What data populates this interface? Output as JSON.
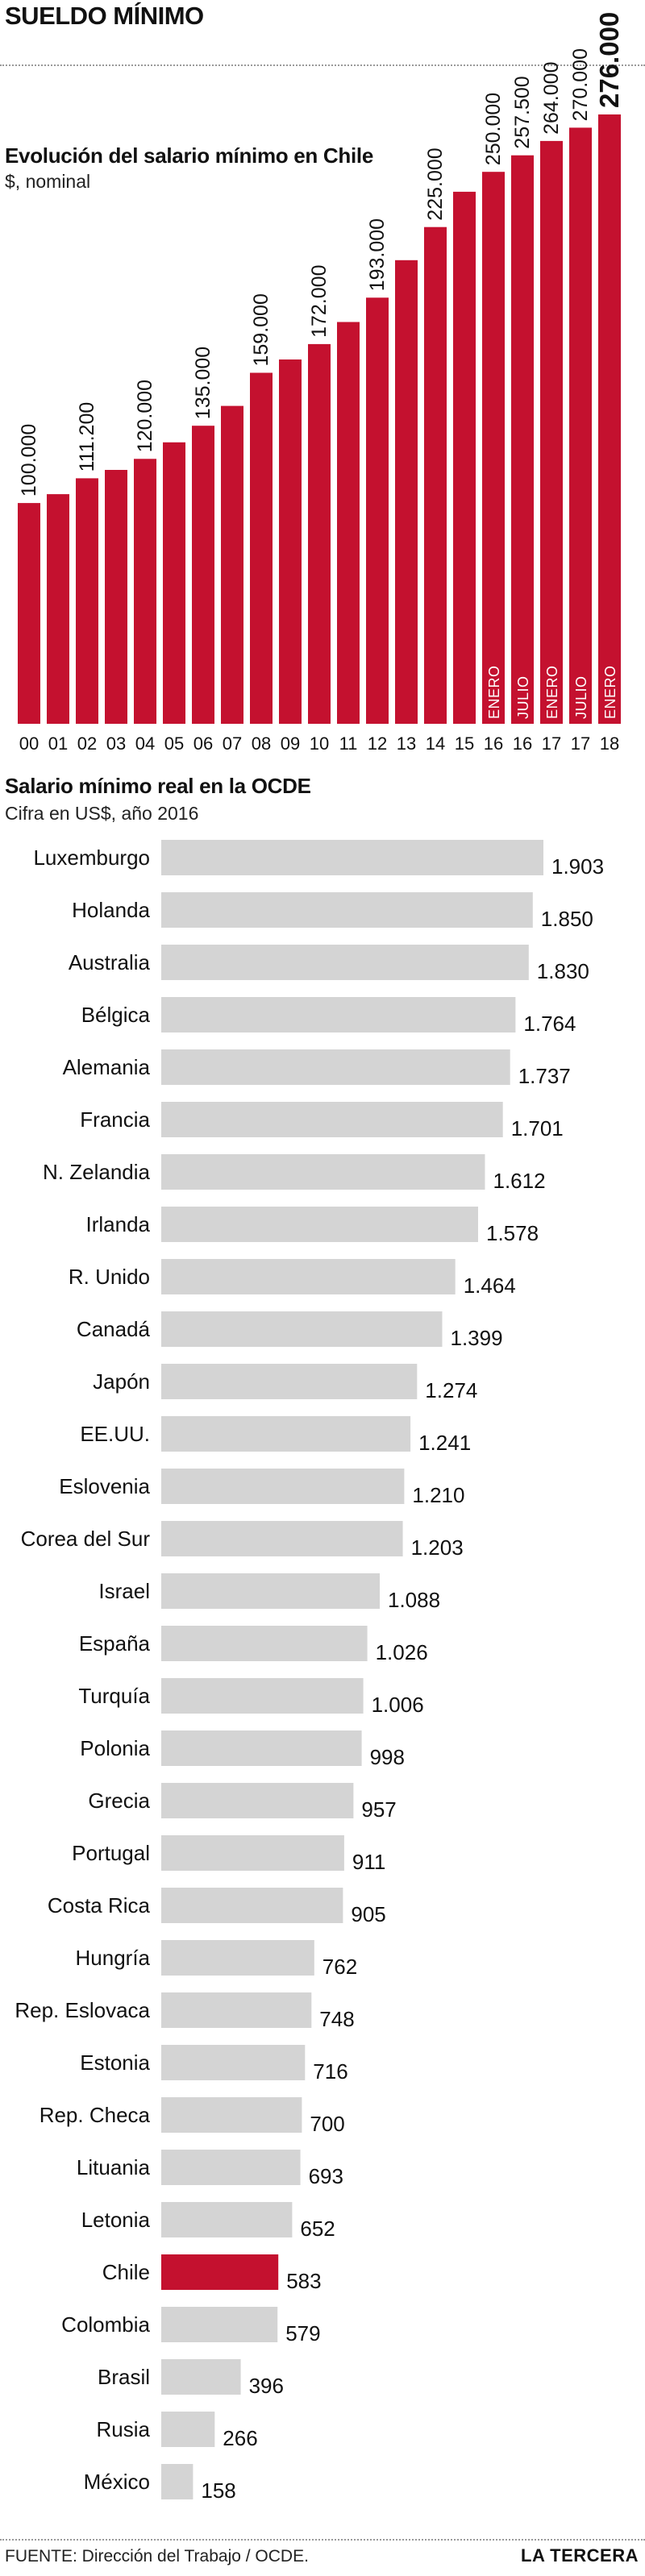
{
  "header": {
    "title": "SUELDO MÍNIMO"
  },
  "footer": {
    "source": "FUENTE: Dirección del Trabajo / OCDE.",
    "brand": "LA TERCERA"
  },
  "colors": {
    "chile_red": "#c4112f",
    "gray_bar": "#d4d4d4",
    "text": "#111111"
  },
  "chart_data": [
    {
      "type": "bar",
      "title": "Evolución del salario mínimo en Chile",
      "subtitle": "$, nominal",
      "categories": [
        "00",
        "01",
        "02",
        "03",
        "04",
        "05",
        "06",
        "07",
        "08",
        "09",
        "10",
        "11",
        "12",
        "13",
        "14",
        "15",
        "16",
        "16",
        "17",
        "17",
        "18"
      ],
      "month_labels": [
        "",
        "",
        "",
        "",
        "",
        "",
        "",
        "",
        "",
        "",
        "",
        "",
        "",
        "",
        "",
        "",
        "ENERO",
        "JULIO",
        "ENERO",
        "JULIO",
        "ENERO"
      ],
      "values": [
        100000,
        104000,
        111200,
        115000,
        120000,
        127500,
        135000,
        144000,
        159000,
        165000,
        172000,
        182000,
        193000,
        210000,
        225000,
        241000,
        250000,
        257500,
        264000,
        270000,
        276000
      ],
      "labels": [
        "100.000",
        "",
        "111.200",
        "",
        "120.000",
        "",
        "135.000",
        "",
        "159.000",
        "",
        "172.000",
        "",
        "193.000",
        "",
        "225.000",
        "",
        "250.000",
        "257.500",
        "264.000",
        "270.000",
        "276.000"
      ],
      "ylim": [
        0,
        276000
      ],
      "bar_color": "#c4112f"
    },
    {
      "type": "bar",
      "orientation": "horizontal",
      "title": "Salario mínimo real en la OCDE",
      "subtitle": "Cifra en US$, año 2016",
      "categories": [
        "Luxemburgo",
        "Holanda",
        "Australia",
        "Bélgica",
        "Alemania",
        "Francia",
        "N. Zelandia",
        "Irlanda",
        "R. Unido",
        "Canadá",
        "Japón",
        "EE.UU.",
        "Eslovenia",
        "Corea del Sur",
        "Israel",
        "España",
        "Turquía",
        "Polonia",
        "Grecia",
        "Portugal",
        "Costa Rica",
        "Hungría",
        "Rep. Eslovaca",
        "Estonia",
        "Rep. Checa",
        "Lituania",
        "Letonia",
        "Chile",
        "Colombia",
        "Brasil",
        "Rusia",
        "México"
      ],
      "values": [
        1903,
        1850,
        1830,
        1764,
        1737,
        1701,
        1612,
        1578,
        1464,
        1399,
        1274,
        1241,
        1210,
        1203,
        1088,
        1026,
        1006,
        998,
        957,
        911,
        905,
        762,
        748,
        716,
        700,
        693,
        652,
        583,
        579,
        396,
        266,
        158
      ],
      "labels": [
        "1.903",
        "1.850",
        "1.830",
        "1.764",
        "1.737",
        "1.701",
        "1.612",
        "1.578",
        "1.464",
        "1.399",
        "1.274",
        "1.241",
        "1.210",
        "1.203",
        "1.088",
        "1.026",
        "1.006",
        "998",
        "957",
        "911",
        "905",
        "762",
        "748",
        "716",
        "700",
        "693",
        "652",
        "583",
        "579",
        "396",
        "266",
        "158"
      ],
      "highlight": "Chile",
      "bar_color": "#d4d4d4",
      "highlight_color": "#c4112f"
    }
  ]
}
